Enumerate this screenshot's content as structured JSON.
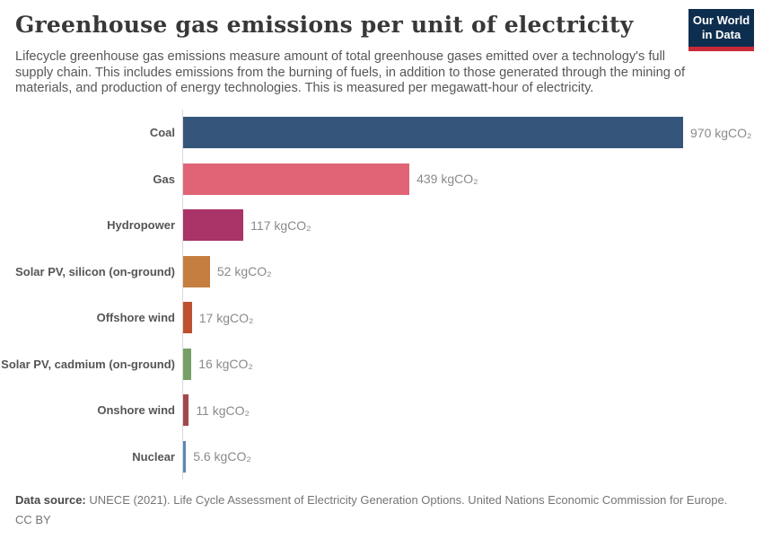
{
  "header": {
    "title": "Greenhouse gas emissions per unit of electricity",
    "subtitle": "Lifecycle greenhouse gas emissions measure amount of total greenhouse gases emitted over a technology's full supply chain. This includes emissions from the burning of fuels, in addition to those generated through the mining of materials, and production of energy technologies. This is measured per megawatt-hour of electricity.",
    "logo": {
      "line1": "Our World",
      "line2": "in Data",
      "bg_color": "#0d2e4e",
      "accent_color": "#c92a3a"
    }
  },
  "chart_data": {
    "type": "bar",
    "orientation": "horizontal",
    "title": "Greenhouse gas emissions per unit of electricity",
    "unit": "kgCO₂ per megawatt-hour",
    "xlim": [
      0,
      970
    ],
    "grid": false,
    "legend": false,
    "categories": [
      "Coal",
      "Gas",
      "Hydropower",
      "Solar PV, silicon (on-ground)",
      "Offshore wind",
      "Solar PV, cadmium (on-ground)",
      "Onshore wind",
      "Nuclear"
    ],
    "values": [
      970,
      439,
      117,
      52,
      17,
      16,
      11,
      5.6
    ],
    "value_labels": [
      "970 kgCO₂",
      "439 kgCO₂",
      "117 kgCO₂",
      "52 kgCO₂",
      "17 kgCO₂",
      "16 kgCO₂",
      "11 kgCO₂",
      "5.6 kgCO₂"
    ],
    "bar_colors": [
      "#35567a",
      "#e06476",
      "#aa3368",
      "#c57e3f",
      "#bd512f",
      "#76a065",
      "#a2494f",
      "#5b87b8"
    ],
    "axis_color": "#d9d9d9"
  },
  "footer": {
    "datasource_label": "Data source:",
    "datasource_text": " UNECE (2021). Life Cycle Assessment of Electricity Generation Options. United Nations Economic Commission for Europe.",
    "license": "CC BY"
  }
}
